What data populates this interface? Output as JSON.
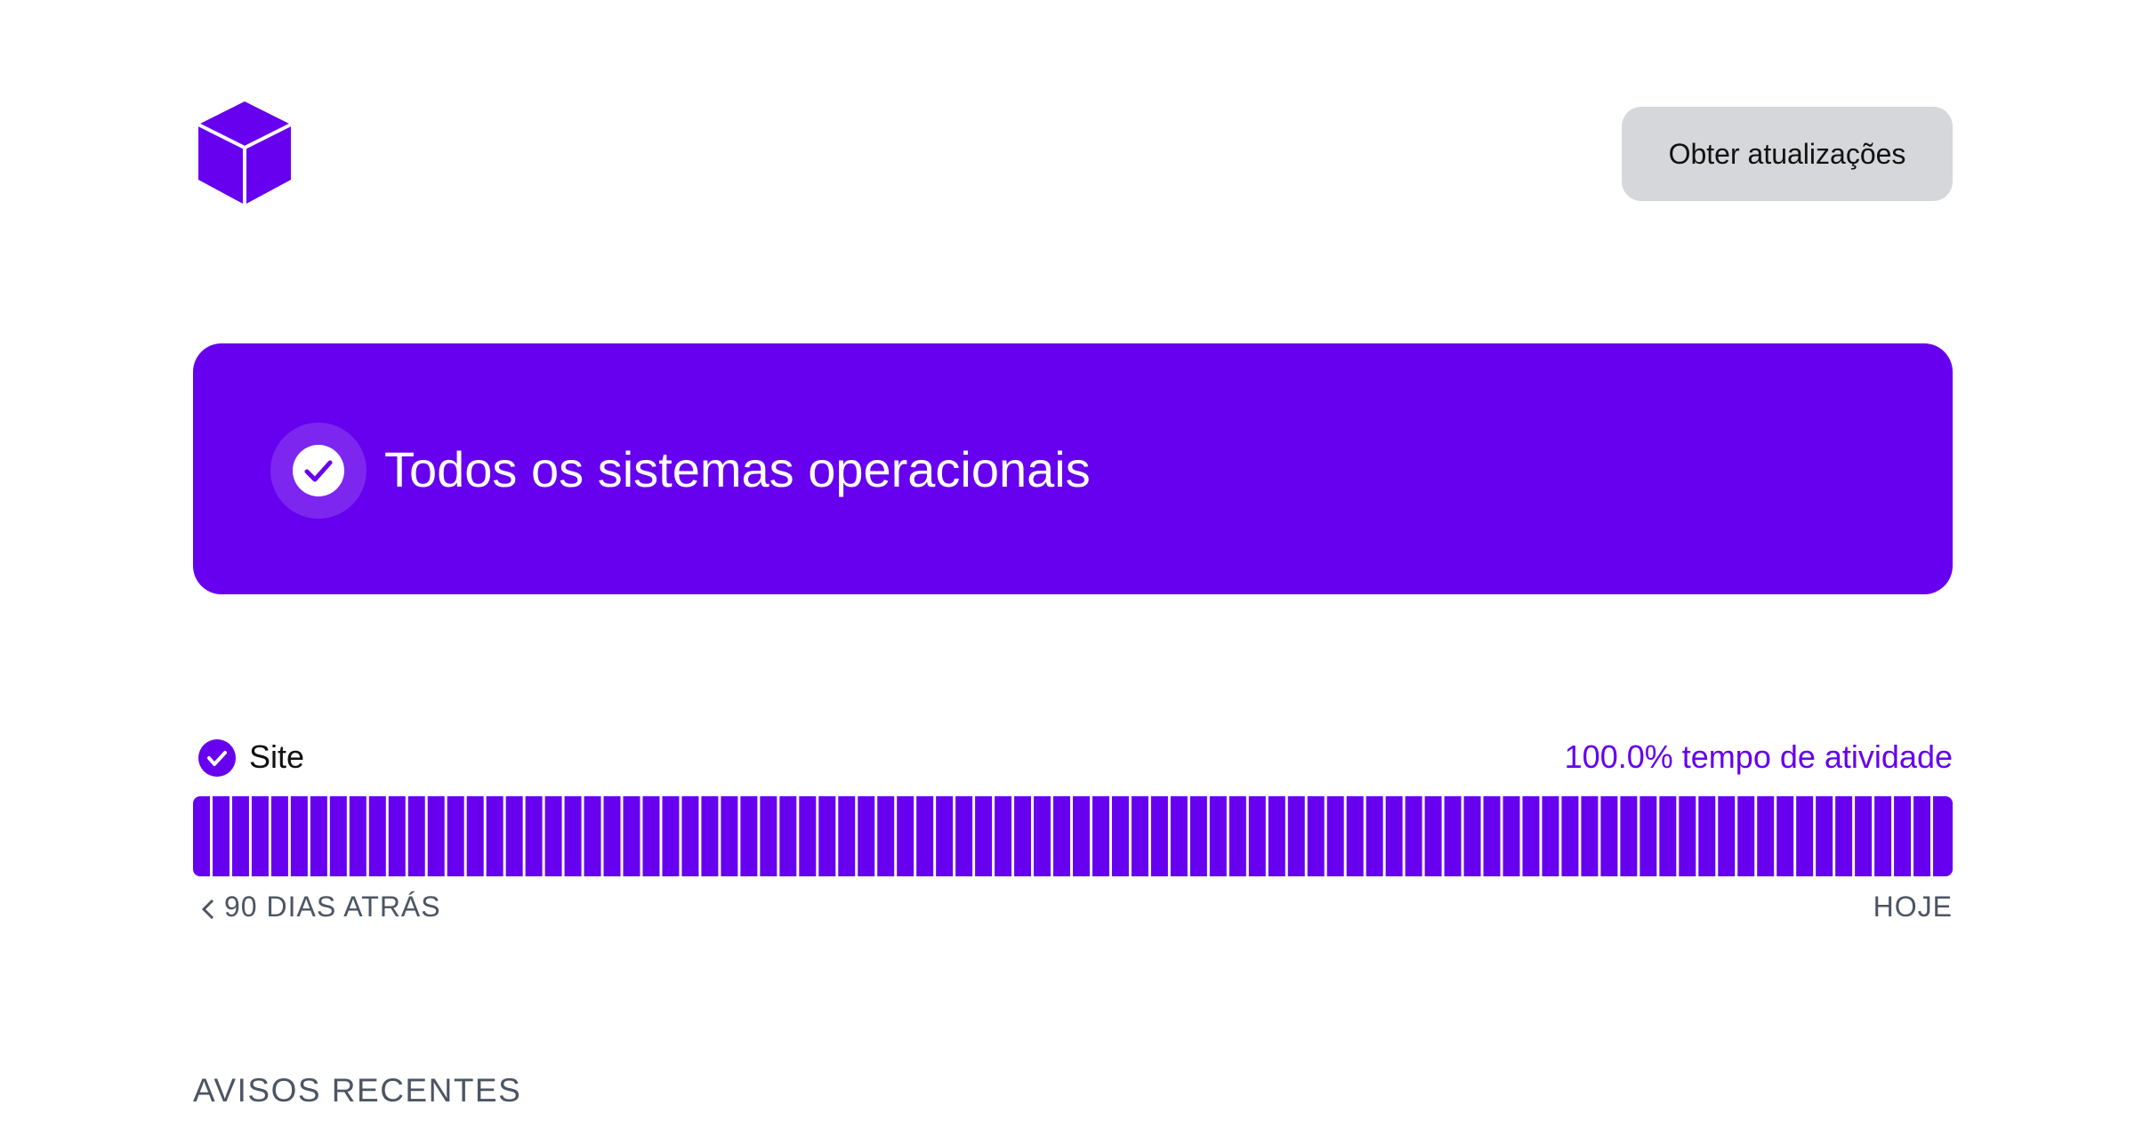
{
  "header": {
    "button": "Obter atualizações"
  },
  "banner": {
    "title": "Todos os sistemas operacionais"
  },
  "component": {
    "name": "Site",
    "uptime": {
      "value": 100,
      "label": "100.0%"
    },
    "uptime_text": "tempo de atividade",
    "history": {
      "days": 90,
      "days_text": "DIAS ATRÁS",
      "end_label": "HOJE"
    }
  },
  "notices": {
    "title": "AVISOS RECENTES"
  }
}
